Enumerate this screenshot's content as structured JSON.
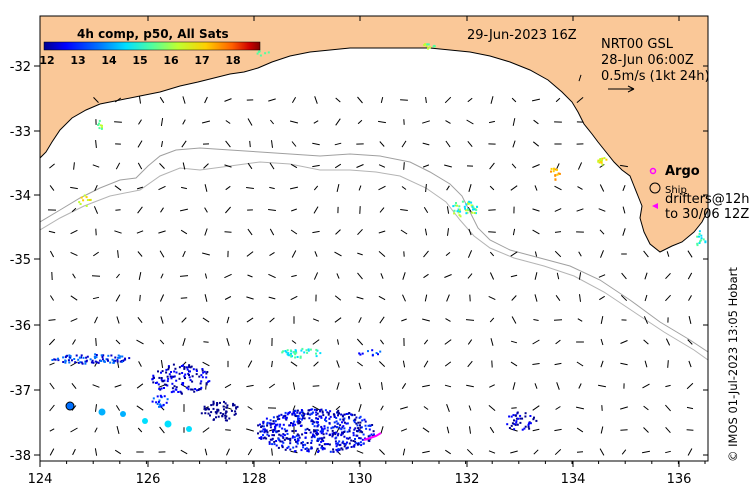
{
  "title": "29-Jun-2023 16Z",
  "colorbar": {
    "title": "4h comp, p50, All Sats",
    "ticks": [
      "12",
      "13",
      "14",
      "15",
      "16",
      "17",
      "18"
    ],
    "colors": [
      "#00008f",
      "#0000ff",
      "#0070ff",
      "#00dfff",
      "#50ff9f",
      "#bfff30",
      "#ffcf00",
      "#ff6000",
      "#d00000",
      "#800000"
    ]
  },
  "currents": {
    "product": "NRT00 GSL",
    "time": "28-Jun 06:00Z",
    "scale": "0.5m/s (1kt 24h)"
  },
  "legend": {
    "argo_label": "Argo",
    "ship_label": "Ship",
    "drifters_line1": "drifters@12h",
    "drifters_line2": "to 30/06 12Z",
    "argo_color": "#ff00ff",
    "drifter_color": "#ff00ff"
  },
  "axes": {
    "lon_ticks": [
      "124",
      "126",
      "128",
      "130",
      "132",
      "134",
      "136"
    ],
    "lat_ticks": [
      "-32",
      "-33",
      "-34",
      "-35",
      "-36",
      "-37",
      "-38"
    ],
    "lon_range": [
      124,
      136.5
    ],
    "lat_range": [
      -38.1,
      -31.3
    ]
  },
  "credit": "© IMOS 01-Jul-2023 13:05 Hobart",
  "land_color": "#fac898"
}
